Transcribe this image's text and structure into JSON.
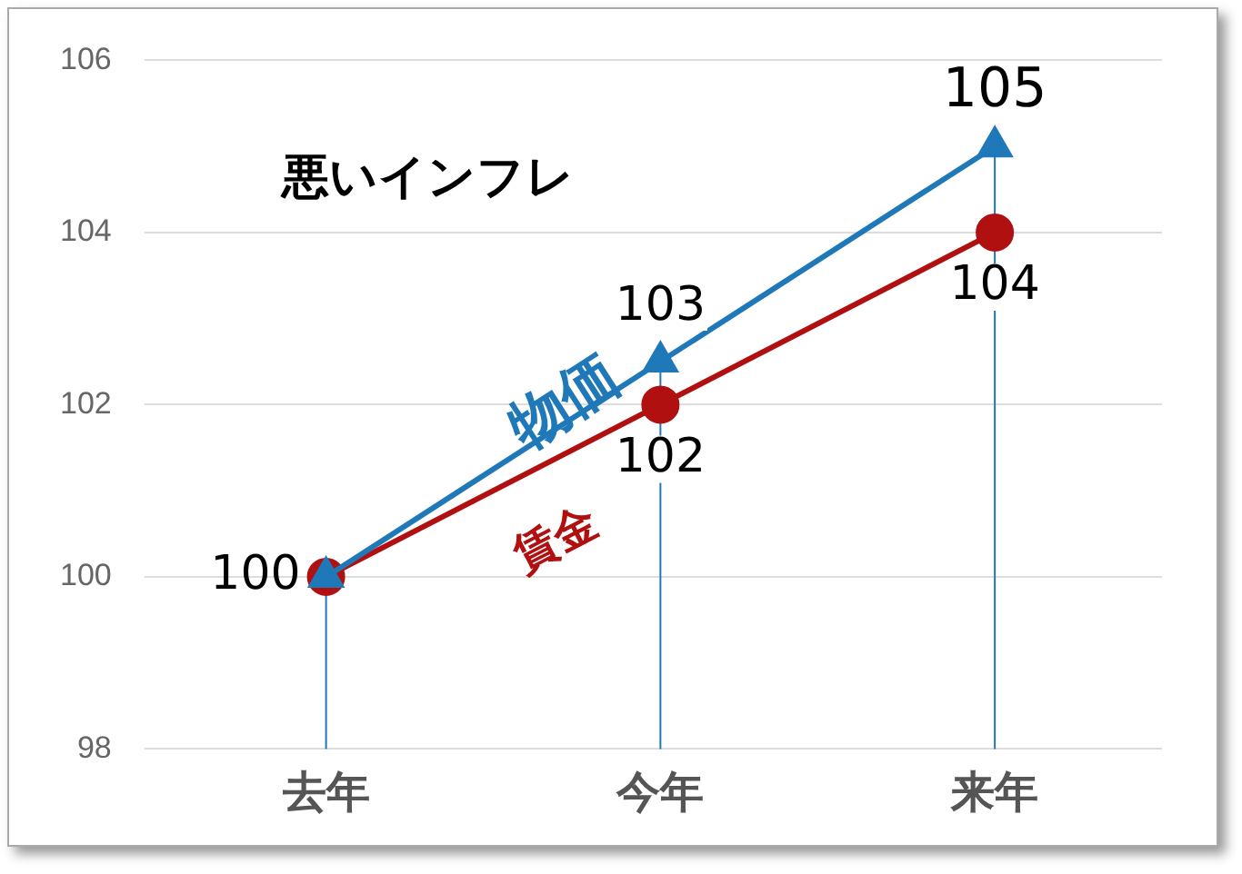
{
  "chart_data": {
    "type": "line",
    "categories": [
      "去年",
      "今年",
      "来年"
    ],
    "series": [
      {
        "name": "物価",
        "color": "#1f78b8",
        "marker": "triangle",
        "values": [
          100,
          102.5,
          105
        ],
        "value_labels": [
          null,
          "103",
          "105"
        ]
      },
      {
        "name": "賃金",
        "color": "#b01010",
        "marker": "circle",
        "values": [
          100,
          102,
          104
        ],
        "value_labels": [
          "100",
          "102",
          "104"
        ]
      }
    ],
    "ylim": [
      98,
      106
    ],
    "yticks": [
      98,
      100,
      102,
      104,
      106
    ],
    "grid": "y",
    "legend": false,
    "line_style": "solid",
    "ref_lines": [
      {
        "axis": "x",
        "value": "去年",
        "color": "#1f78b8"
      },
      {
        "axis": "x",
        "value": "今年",
        "color": "#1f78b8"
      },
      {
        "axis": "x",
        "value": "来年",
        "color": "#1f78b8"
      }
    ],
    "annotations": [
      "悪いインフレ"
    ]
  }
}
